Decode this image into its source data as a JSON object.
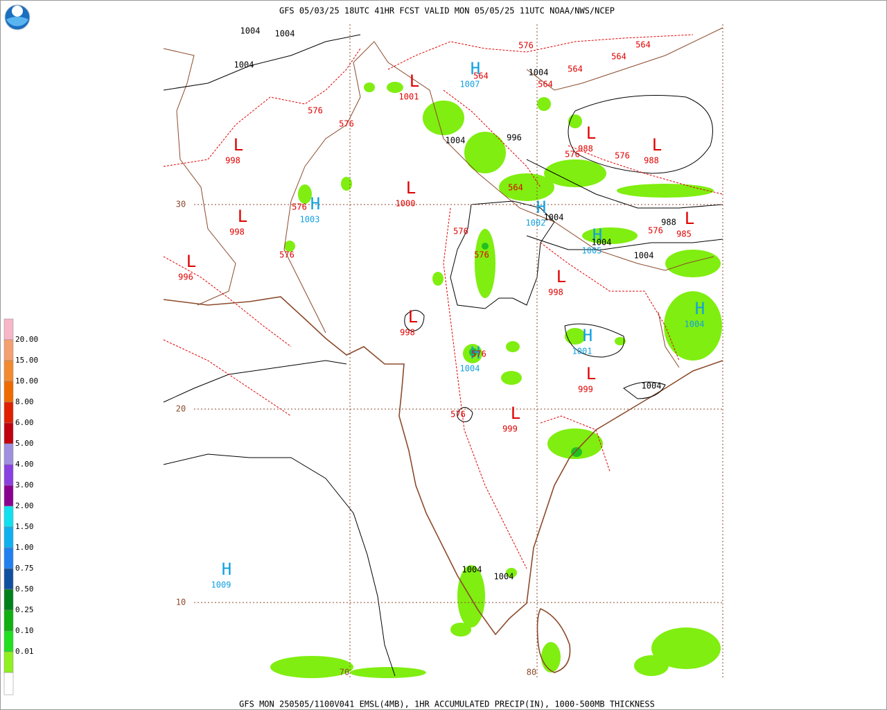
{
  "header": {
    "title": "GFS 05/03/25 18UTC 41HR FCST VALID MON 05/05/25 11UTC NOAA/NWS/NCEP"
  },
  "footer": {
    "caption": "GFS MON 250505/1100V041 EMSL(4MB), 1HR ACCUMULATED PRECIP(IN), 1000-500MB THICKNESS"
  },
  "legend": {
    "labels": [
      "20.00",
      "15.00",
      "10.00",
      "8.00",
      "6.00",
      "5.00",
      "4.00",
      "3.00",
      "2.00",
      "1.50",
      "1.00",
      "0.75",
      "0.50",
      "0.25",
      "0.10",
      "0.01"
    ],
    "colors": [
      "#f7b7c8",
      "#f5a070",
      "#f38a30",
      "#f06a00",
      "#e02000",
      "#c00010",
      "#a090e0",
      "#8a40e0",
      "#8a0090",
      "#10e0f0",
      "#10b0f0",
      "#2080f0",
      "#1050a0",
      "#00801a",
      "#10b010",
      "#20e020",
      "#90f020",
      "#ffffff"
    ]
  },
  "grid": {
    "lat_labels": [
      "30",
      "20",
      "10"
    ],
    "lon_labels": [
      "70",
      "80"
    ]
  },
  "centers": [
    {
      "symbol": "L",
      "value": "1001"
    },
    {
      "symbol": "H",
      "value": "1007"
    },
    {
      "symbol": "L",
      "value": "998"
    },
    {
      "symbol": "L",
      "value": "1000"
    },
    {
      "symbol": "H",
      "value": "1003"
    },
    {
      "symbol": "L",
      "value": "998"
    },
    {
      "symbol": "L",
      "value": "996"
    },
    {
      "symbol": "L",
      "value": "988"
    },
    {
      "symbol": "L",
      "value": "988"
    },
    {
      "symbol": "H",
      "value": "1002"
    },
    {
      "symbol": "H",
      "value": "1005"
    },
    {
      "symbol": "L",
      "value": "985"
    },
    {
      "symbol": "L",
      "value": "998"
    },
    {
      "symbol": "L",
      "value": "998"
    },
    {
      "symbol": "H",
      "value": "1001"
    },
    {
      "symbol": "H",
      "value": "1004"
    },
    {
      "symbol": "H",
      "value": "1004"
    },
    {
      "symbol": "L",
      "value": "999"
    },
    {
      "symbol": "L",
      "value": "999"
    },
    {
      "symbol": "H",
      "value": "1009"
    }
  ],
  "isobar_labels": [
    "1004",
    "1004",
    "1004",
    "1004",
    "1004",
    "996",
    "1004",
    "1004",
    "1004",
    "988",
    "1004",
    "1004",
    "1004"
  ],
  "thickness_labels": [
    "576",
    "564",
    "564",
    "564",
    "564",
    "564",
    "576",
    "576",
    "576",
    "576",
    "564",
    "576",
    "576",
    "576",
    "576",
    "576",
    "576",
    "576"
  ]
}
